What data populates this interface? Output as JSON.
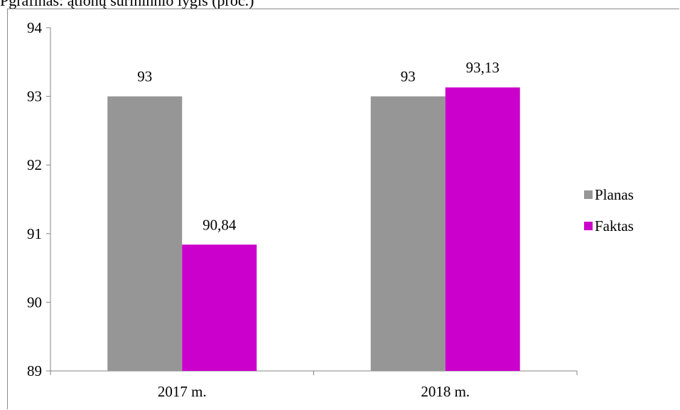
{
  "caption": "Pgrafinas: ątlonų surininnio lygis (proc.)",
  "chart_data": {
    "type": "bar",
    "categories": [
      "2017 m.",
      "2018 m."
    ],
    "series": [
      {
        "name": "Planas",
        "values": [
          93,
          93
        ],
        "labels": [
          "93",
          "93"
        ],
        "color": "#969696"
      },
      {
        "name": "Faktas",
        "values": [
          90.84,
          93.13
        ],
        "labels": [
          "90,84",
          "93,13"
        ],
        "color": "#cc00cc"
      }
    ],
    "ylim": [
      89,
      94
    ],
    "yticks": [
      89,
      90,
      91,
      92,
      93,
      94
    ],
    "title": "",
    "xlabel": "",
    "ylabel": "",
    "legend": "right",
    "grid": false
  }
}
